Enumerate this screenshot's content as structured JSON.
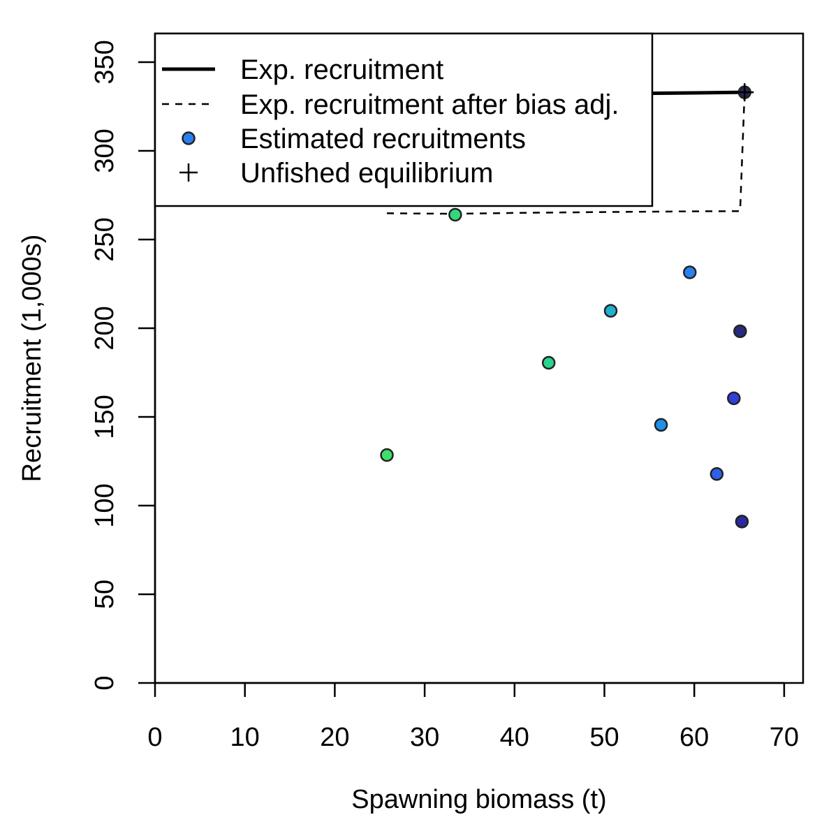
{
  "chart_data": {
    "type": "scatter",
    "xlabel": "Spawning biomass (t)",
    "ylabel": "Recruitment (1,000s)",
    "xlim": [
      0,
      72
    ],
    "ylim": [
      0,
      365
    ],
    "x_ticks": [
      0,
      10,
      20,
      30,
      40,
      50,
      60,
      70
    ],
    "y_ticks": [
      0,
      50,
      100,
      150,
      200,
      250,
      300,
      350
    ],
    "grid": false,
    "legend_position": "top-left",
    "legend": [
      {
        "label": "Exp. recruitment",
        "marker": "solid-line"
      },
      {
        "label": "Exp. recruitment after bias adj.",
        "marker": "dashed-line"
      },
      {
        "label": "Estimated recruitments",
        "marker": "circle",
        "color": "#2a7ff0"
      },
      {
        "label": "Unfished equilibrium",
        "marker": "plus"
      }
    ],
    "series": [
      {
        "type": "line",
        "style": "solid",
        "color": "#000000",
        "x": [
          25.8,
          30,
          40,
          50,
          60,
          65.6
        ],
        "y": [
          329.5,
          330.5,
          331.5,
          332.2,
          332.7,
          333
        ]
      },
      {
        "type": "line",
        "style": "dashed",
        "color": "#000000",
        "x": [
          25.8,
          33.4,
          40,
          50,
          60,
          65.1,
          65.6
        ],
        "y": [
          264.8,
          264.5,
          265,
          265.5,
          265.9,
          266,
          333
        ]
      },
      {
        "type": "scatter",
        "points": [
          {
            "x": 25.8,
            "y": 128.5,
            "color": "#3ee06a"
          },
          {
            "x": 33.4,
            "y": 264.0,
            "color": "#30d87e"
          },
          {
            "x": 43.8,
            "y": 180.5,
            "color": "#28d48e"
          },
          {
            "x": 50.7,
            "y": 209.8,
            "color": "#22b0cc"
          },
          {
            "x": 56.3,
            "y": 145.5,
            "color": "#1f90ea"
          },
          {
            "x": 59.5,
            "y": 231.5,
            "color": "#2a80f0"
          },
          {
            "x": 62.5,
            "y": 117.8,
            "color": "#2f60e8"
          },
          {
            "x": 64.4,
            "y": 160.5,
            "color": "#2f40d8"
          },
          {
            "x": 65.1,
            "y": 198.3,
            "color": "#282a80"
          },
          {
            "x": 65.3,
            "y": 91.0,
            "color": "#2a2aa0"
          },
          {
            "x": 65.6,
            "y": 333.0,
            "color": "#262650"
          }
        ]
      },
      {
        "type": "point",
        "marker": "plus",
        "x": 65.6,
        "y": 333.0
      }
    ]
  }
}
